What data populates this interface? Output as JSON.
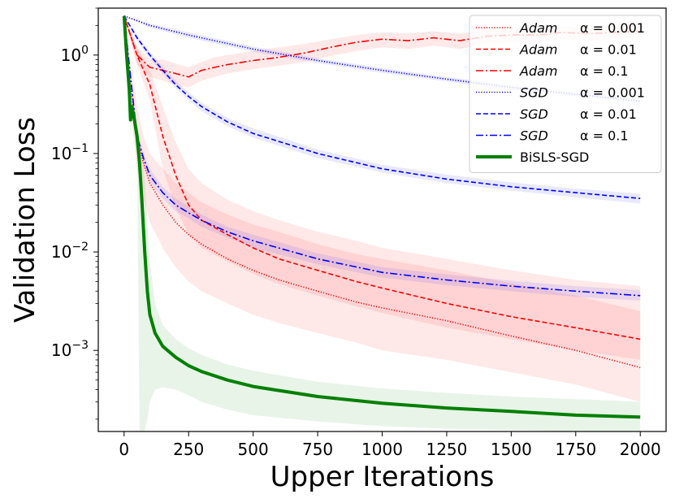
{
  "chart_data": {
    "type": "line",
    "title": "",
    "xlabel": "Upper Iterations",
    "ylabel": "Validation Loss",
    "xscale": "linear",
    "yscale": "log",
    "xlim": [
      -100,
      2100
    ],
    "ylim": [
      0.00015,
      3.0
    ],
    "xticks": [
      0,
      250,
      500,
      750,
      1000,
      1250,
      1500,
      1750,
      2000
    ],
    "xtick_labels": [
      "0",
      "250",
      "500",
      "750",
      "1000",
      "1250",
      "1500",
      "1750",
      "2000"
    ],
    "yticks": [
      0.001,
      0.01,
      0.1,
      1
    ],
    "ytick_labels": [
      {
        "base": "10",
        "exp": "−3"
      },
      {
        "base": "10",
        "exp": "−2"
      },
      {
        "base": "10",
        "exp": "−1"
      },
      {
        "base": "10",
        "exp": "0"
      }
    ],
    "legend_position": "top-right",
    "series": [
      {
        "name": "Adam α=0.001",
        "optimizer": "Adam",
        "alpha_label": "α = 0.001",
        "color": "#ff0000",
        "style": "dotted",
        "band_color": "#ff0000",
        "x": [
          0,
          25,
          50,
          75,
          100,
          150,
          200,
          250,
          300,
          400,
          500,
          600,
          750,
          900,
          1000,
          1250,
          1500,
          1750,
          2000
        ],
        "y": [
          2.5,
          0.5,
          0.15,
          0.08,
          0.05,
          0.03,
          0.02,
          0.015,
          0.012,
          0.0085,
          0.0065,
          0.0052,
          0.004,
          0.0031,
          0.0027,
          0.002,
          0.0014,
          0.001,
          0.00067
        ],
        "band_upper": [
          2.5,
          0.9,
          0.3,
          0.15,
          0.1,
          0.07,
          0.05,
          0.04,
          0.032,
          0.024,
          0.019,
          0.016,
          0.012,
          0.0095,
          0.0085,
          0.0065,
          0.0048,
          0.0036,
          0.0025
        ],
        "band_lower": [
          2.5,
          0.3,
          0.07,
          0.035,
          0.02,
          0.011,
          0.007,
          0.005,
          0.004,
          0.003,
          0.0023,
          0.0019,
          0.0015,
          0.0012,
          0.001,
          0.0008,
          0.0006,
          0.00045,
          0.0003
        ]
      },
      {
        "name": "Adam α=0.01",
        "optimizer": "Adam",
        "alpha_label": "α = 0.01",
        "color": "#ff0000",
        "style": "dashed",
        "band_color": "#ff0000",
        "x": [
          0,
          50,
          100,
          150,
          200,
          250,
          300,
          400,
          500,
          600,
          750,
          900,
          1000,
          1250,
          1500,
          1750,
          2000
        ],
        "y": [
          2.5,
          1.0,
          0.5,
          0.15,
          0.06,
          0.03,
          0.021,
          0.015,
          0.011,
          0.0085,
          0.0065,
          0.005,
          0.0043,
          0.003,
          0.0022,
          0.0017,
          0.0013
        ],
        "band_upper": [
          2.5,
          1.2,
          0.7,
          0.3,
          0.13,
          0.07,
          0.05,
          0.034,
          0.026,
          0.021,
          0.016,
          0.013,
          0.011,
          0.0085,
          0.0065,
          0.0052,
          0.0045
        ],
        "band_lower": [
          2.5,
          0.8,
          0.35,
          0.07,
          0.028,
          0.015,
          0.011,
          0.008,
          0.006,
          0.0047,
          0.0036,
          0.0028,
          0.0024,
          0.0017,
          0.0013,
          0.001,
          0.0008
        ]
      },
      {
        "name": "Adam α=0.1",
        "optimizer": "Adam",
        "alpha_label": "α = 0.1",
        "color": "#ff0000",
        "style": "dashdot",
        "band_color": "#ff0000",
        "x": [
          0,
          50,
          100,
          150,
          200,
          250,
          300,
          350,
          400,
          500,
          600,
          700,
          800,
          900,
          1000,
          1100,
          1200,
          1300,
          1400,
          1500,
          1600,
          1700,
          1800,
          1900,
          2000
        ],
        "y": [
          2.5,
          1.0,
          0.75,
          0.7,
          0.65,
          0.6,
          0.7,
          0.75,
          0.8,
          0.88,
          0.95,
          1.05,
          1.2,
          1.35,
          1.45,
          1.4,
          1.5,
          1.4,
          1.55,
          1.6,
          1.6,
          1.7,
          1.65,
          1.7,
          1.75
        ],
        "band_upper": [
          2.5,
          1.2,
          0.9,
          0.9,
          0.82,
          0.75,
          0.85,
          0.95,
          1.0,
          1.1,
          1.2,
          1.3,
          1.45,
          1.6,
          1.7,
          1.65,
          1.75,
          1.65,
          1.8,
          1.85,
          1.85,
          1.95,
          1.9,
          1.95,
          2.0
        ],
        "band_lower": [
          2.5,
          0.8,
          0.6,
          0.55,
          0.5,
          0.47,
          0.55,
          0.6,
          0.65,
          0.72,
          0.78,
          0.85,
          0.98,
          1.1,
          1.2,
          1.15,
          1.25,
          1.15,
          1.3,
          1.35,
          1.35,
          1.45,
          1.4,
          1.45,
          1.5
        ]
      },
      {
        "name": "SGD α=0.001",
        "optimizer": "SGD",
        "alpha_label": "α = 0.001",
        "color": "#0000ff",
        "style": "dotted",
        "band_color": "#0000ff",
        "x": [
          0,
          100,
          250,
          500,
          750,
          1000,
          1250,
          1500,
          1750,
          2000
        ],
        "y": [
          2.5,
          2.0,
          1.6,
          1.15,
          0.88,
          0.7,
          0.57,
          0.47,
          0.4,
          0.34
        ],
        "band_upper": [
          2.5,
          2.1,
          1.7,
          1.22,
          0.93,
          0.74,
          0.6,
          0.5,
          0.42,
          0.36
        ],
        "band_lower": [
          2.5,
          1.9,
          1.5,
          1.08,
          0.83,
          0.66,
          0.54,
          0.44,
          0.38,
          0.32
        ]
      },
      {
        "name": "SGD α=0.01",
        "optimizer": "SGD",
        "alpha_label": "α = 0.01",
        "color": "#0000ff",
        "style": "dashed",
        "band_color": "#0000ff",
        "x": [
          0,
          50,
          100,
          150,
          200,
          250,
          300,
          400,
          500,
          750,
          1000,
          1250,
          1500,
          1750,
          2000
        ],
        "y": [
          2.5,
          1.5,
          1.0,
          0.7,
          0.5,
          0.38,
          0.3,
          0.21,
          0.16,
          0.1,
          0.07,
          0.055,
          0.046,
          0.04,
          0.035
        ],
        "band_upper": [
          2.5,
          1.6,
          1.08,
          0.76,
          0.55,
          0.42,
          0.33,
          0.23,
          0.18,
          0.11,
          0.077,
          0.061,
          0.051,
          0.044,
          0.039
        ],
        "band_lower": [
          2.5,
          1.4,
          0.93,
          0.65,
          0.46,
          0.35,
          0.27,
          0.19,
          0.145,
          0.09,
          0.064,
          0.05,
          0.042,
          0.036,
          0.031
        ]
      },
      {
        "name": "SGD α=0.1",
        "optimizer": "SGD",
        "alpha_label": "α = 0.1",
        "color": "#0000ff",
        "style": "dashdot",
        "band_color": "#0000ff",
        "x": [
          0,
          25,
          50,
          75,
          100,
          150,
          200,
          250,
          300,
          400,
          500,
          750,
          1000,
          1250,
          1500,
          1750,
          2000
        ],
        "y": [
          2.5,
          0.6,
          0.15,
          0.09,
          0.06,
          0.04,
          0.03,
          0.025,
          0.021,
          0.016,
          0.013,
          0.0085,
          0.0062,
          0.0052,
          0.0045,
          0.004,
          0.0036
        ],
        "band_upper": [
          2.5,
          0.7,
          0.18,
          0.1,
          0.07,
          0.046,
          0.035,
          0.029,
          0.024,
          0.018,
          0.015,
          0.0097,
          0.007,
          0.0059,
          0.0051,
          0.0045,
          0.0041
        ],
        "band_lower": [
          2.5,
          0.5,
          0.12,
          0.08,
          0.052,
          0.035,
          0.026,
          0.022,
          0.018,
          0.014,
          0.011,
          0.0075,
          0.0055,
          0.0046,
          0.004,
          0.0035,
          0.0032
        ]
      },
      {
        "name": "BiSLS-SGD",
        "optimizer": "",
        "alpha_label": "BiSLS-SGD",
        "color": "#008000",
        "style": "solid",
        "band_color": "#008000",
        "x": [
          0,
          10,
          20,
          25,
          30,
          40,
          50,
          60,
          70,
          80,
          90,
          100,
          120,
          150,
          200,
          250,
          300,
          400,
          500,
          750,
          1000,
          1250,
          1500,
          1750,
          2000
        ],
        "y": [
          2.5,
          1.0,
          0.45,
          0.22,
          0.3,
          0.22,
          0.15,
          0.08,
          0.03,
          0.01,
          0.004,
          0.0023,
          0.0015,
          0.0011,
          0.00085,
          0.0007,
          0.00061,
          0.0005,
          0.00043,
          0.00034,
          0.00029,
          0.00026,
          0.00024,
          0.00022,
          0.00021
        ],
        "band_upper": [
          2.5,
          1.2,
          0.55,
          0.3,
          0.35,
          0.28,
          0.2,
          0.15,
          0.1,
          0.06,
          0.02,
          0.008,
          0.003,
          0.0018,
          0.0013,
          0.00105,
          0.0009,
          0.00072,
          0.00062,
          0.00048,
          0.00041,
          0.00037,
          0.00034,
          0.00032,
          0.0003
        ],
        "band_lower": [
          2.5,
          0.8,
          0.35,
          0.15,
          0.25,
          0.15,
          0.1,
          0.0001,
          0.0001,
          0.0001,
          0.0002,
          0.0003,
          0.0004,
          0.00042,
          0.0004,
          0.00035,
          0.0003,
          0.00025,
          0.00022,
          0.00019,
          0.00017,
          0.00016,
          0.000155,
          0.00015,
          0.00015
        ]
      }
    ]
  }
}
